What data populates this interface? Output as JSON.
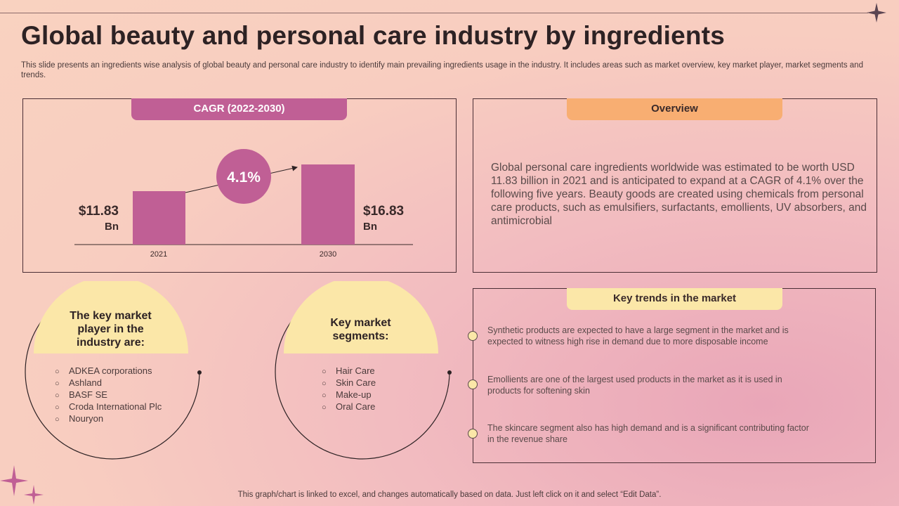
{
  "header": {
    "title": "Global beauty and personal care industry by ingredients",
    "subtitle": "This slide presents an ingredients wise analysis of global beauty and personal care industry to identify main prevailing ingredients usage in the industry. It includes areas such as market overview, key market player, market segments and trends."
  },
  "cagr_panel": {
    "tab_label": "CAGR (2022-2030)",
    "growth_label": "4.1%"
  },
  "chart_data": {
    "type": "bar",
    "title": "CAGR (2022-2030)",
    "categories": [
      "2021",
      "2030"
    ],
    "values": [
      11.83,
      16.83
    ],
    "value_labels": [
      {
        "amount": "$11.83",
        "unit": "Bn"
      },
      {
        "amount": "$16.83",
        "unit": "Bn"
      }
    ],
    "annotation": "4.1%",
    "ylim": [
      0,
      20
    ],
    "xlabel": "",
    "ylabel": "",
    "bar_color": "#c05f95"
  },
  "overview": {
    "tab_label": "Overview",
    "text": "Global personal care ingredients worldwide was estimated to be worth USD 11.83 billion in 2021 and is anticipated to expand at a CAGR of 4.1% over the following five years. Beauty goods are created using chemicals from personal care products, such as emulsifiers, surfactants, emollients, UV absorbers, and antimicrobial"
  },
  "key_players": {
    "title": "The key market player in the industry are:",
    "items": [
      "ADKEA corporations",
      "Ashland",
      "BASF SE",
      "Croda International Plc",
      "Nouryon"
    ]
  },
  "key_segments": {
    "title": "Key market segments:",
    "items": [
      "Hair Care",
      "Skin Care",
      "Make-up",
      "Oral Care"
    ]
  },
  "trends": {
    "tab_label": "Key trends in the market",
    "items": [
      "Synthetic products are expected to have  a large segment in the market and is expected to witness high rise in demand due to more disposable income",
      "Emollients are one of the largest used products in the market as it is used in products for softening skin",
      "The skincare segment also has high demand and is a significant contributing factor in the revenue  share"
    ]
  },
  "footer": {
    "text": "This graph/chart is linked to excel, and changes automatically based on data. Just left click on it and select “Edit Data”."
  },
  "colors": {
    "accent": "#c05f95",
    "orange": "#f8ae72",
    "yellow": "#fbe7a8"
  }
}
